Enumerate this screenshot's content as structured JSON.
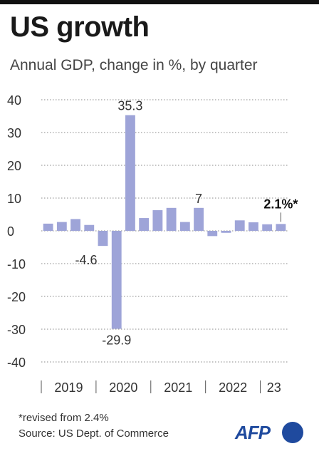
{
  "header": {
    "title": "US growth",
    "subtitle": "Annual GDP, change in %, by quarter"
  },
  "footer": {
    "footnote": "*revised from 2.4%",
    "source": "Source: US Dept. of Commerce",
    "logo_text": "AFP"
  },
  "colors": {
    "bar": "#9ea4d8",
    "grid": "#888888",
    "brand": "#1f4a9e"
  },
  "chart_data": {
    "type": "bar",
    "title": "US growth",
    "subtitle": "Annual GDP, change in %, by quarter",
    "ylim": [
      -40,
      40
    ],
    "yticks": [
      40,
      30,
      20,
      10,
      0,
      -10,
      -20,
      -30,
      -40
    ],
    "grid": true,
    "year_labels": [
      "2019",
      "2020",
      "2021",
      "2022",
      "23"
    ],
    "values": [
      2.2,
      2.7,
      3.6,
      1.8,
      -4.6,
      -29.9,
      35.3,
      3.9,
      6.3,
      7.0,
      2.7,
      7.0,
      -1.6,
      -0.6,
      3.2,
      2.6,
      2.0,
      2.1
    ],
    "value_labels": [
      {
        "index": 4,
        "text": "-4.6",
        "position": "left"
      },
      {
        "index": 5,
        "text": "-29.9",
        "position": "below"
      },
      {
        "index": 6,
        "text": "35.3",
        "position": "above"
      },
      {
        "index": 11,
        "text": "7",
        "position": "above"
      },
      {
        "index": 17,
        "text": "2.1%*",
        "position": "above",
        "bold": true
      }
    ]
  }
}
